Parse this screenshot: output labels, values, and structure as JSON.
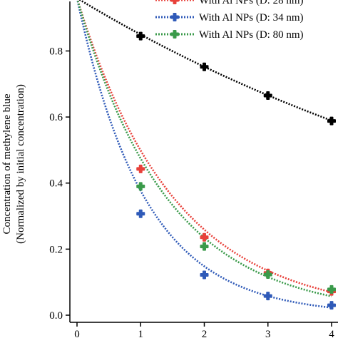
{
  "chart_data": {
    "type": "scatter",
    "title": "",
    "xlabel": "",
    "ylabel": "Concentration of methylene blue",
    "ylabel_sub": "(Normalized by initial concentration)",
    "xlim": [
      0,
      4
    ],
    "ylim": [
      0,
      0.95
    ],
    "x_ticks": [
      "0",
      "1",
      "2",
      "3",
      "4"
    ],
    "y_ticks": [
      "0.0",
      "0.2",
      "0.4",
      "0.6",
      "0.8"
    ],
    "legend_position": "top-right",
    "series": [
      {
        "name": "",
        "color": "#000000",
        "x": [
          1,
          2,
          3,
          4
        ],
        "y": [
          0.845,
          0.752,
          0.665,
          0.588
        ],
        "fit": {
          "form": "a*exp(-k*x)",
          "a": 0.96,
          "k": 0.122
        }
      },
      {
        "name": "With Al NPs (D: 28 nm)",
        "color": "#e8413a",
        "x": [
          1,
          2,
          3,
          4
        ],
        "y": [
          0.443,
          0.236,
          0.128,
          0.072
        ],
        "fit": {
          "form": "a*exp(-k*x)",
          "a": 0.96,
          "k": 0.655
        }
      },
      {
        "name": "With Al NPs (D: 34 nm)",
        "color": "#2f5ab8",
        "x": [
          1,
          2,
          3,
          4
        ],
        "y": [
          0.307,
          0.122,
          0.058,
          0.03
        ],
        "fit": {
          "form": "a*exp(-k*x)",
          "a": 0.96,
          "k": 0.935
        }
      },
      {
        "name": "With Al NPs (D: 80 nm)",
        "color": "#3a9a4a",
        "x": [
          1,
          2,
          3,
          4
        ],
        "y": [
          0.39,
          0.208,
          0.123,
          0.078
        ],
        "fit": {
          "form": "a*exp(-k*x)",
          "a": 0.96,
          "k": 0.705
        }
      }
    ]
  }
}
